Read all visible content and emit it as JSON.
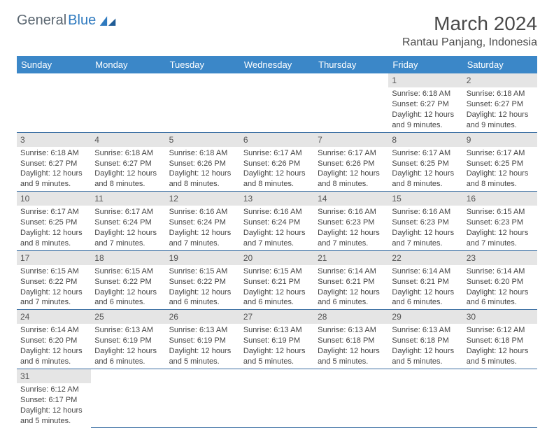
{
  "logo": {
    "text1": "General",
    "text2": "Blue"
  },
  "title": "March 2024",
  "location": "Rantau Panjang, Indonesia",
  "colors": {
    "header_bg": "#3b87c8",
    "header_text": "#ffffff",
    "daynum_bg": "#e5e5e5",
    "cell_border": "#3b6fa3",
    "body_text": "#444444"
  },
  "weekdays": [
    "Sunday",
    "Monday",
    "Tuesday",
    "Wednesday",
    "Thursday",
    "Friday",
    "Saturday"
  ],
  "weeks": [
    [
      null,
      null,
      null,
      null,
      null,
      {
        "n": "1",
        "sr": "Sunrise: 6:18 AM",
        "ss": "Sunset: 6:27 PM",
        "dl": "Daylight: 12 hours and 9 minutes."
      },
      {
        "n": "2",
        "sr": "Sunrise: 6:18 AM",
        "ss": "Sunset: 6:27 PM",
        "dl": "Daylight: 12 hours and 9 minutes."
      }
    ],
    [
      {
        "n": "3",
        "sr": "Sunrise: 6:18 AM",
        "ss": "Sunset: 6:27 PM",
        "dl": "Daylight: 12 hours and 9 minutes."
      },
      {
        "n": "4",
        "sr": "Sunrise: 6:18 AM",
        "ss": "Sunset: 6:27 PM",
        "dl": "Daylight: 12 hours and 8 minutes."
      },
      {
        "n": "5",
        "sr": "Sunrise: 6:18 AM",
        "ss": "Sunset: 6:26 PM",
        "dl": "Daylight: 12 hours and 8 minutes."
      },
      {
        "n": "6",
        "sr": "Sunrise: 6:17 AM",
        "ss": "Sunset: 6:26 PM",
        "dl": "Daylight: 12 hours and 8 minutes."
      },
      {
        "n": "7",
        "sr": "Sunrise: 6:17 AM",
        "ss": "Sunset: 6:26 PM",
        "dl": "Daylight: 12 hours and 8 minutes."
      },
      {
        "n": "8",
        "sr": "Sunrise: 6:17 AM",
        "ss": "Sunset: 6:25 PM",
        "dl": "Daylight: 12 hours and 8 minutes."
      },
      {
        "n": "9",
        "sr": "Sunrise: 6:17 AM",
        "ss": "Sunset: 6:25 PM",
        "dl": "Daylight: 12 hours and 8 minutes."
      }
    ],
    [
      {
        "n": "10",
        "sr": "Sunrise: 6:17 AM",
        "ss": "Sunset: 6:25 PM",
        "dl": "Daylight: 12 hours and 8 minutes."
      },
      {
        "n": "11",
        "sr": "Sunrise: 6:17 AM",
        "ss": "Sunset: 6:24 PM",
        "dl": "Daylight: 12 hours and 7 minutes."
      },
      {
        "n": "12",
        "sr": "Sunrise: 6:16 AM",
        "ss": "Sunset: 6:24 PM",
        "dl": "Daylight: 12 hours and 7 minutes."
      },
      {
        "n": "13",
        "sr": "Sunrise: 6:16 AM",
        "ss": "Sunset: 6:24 PM",
        "dl": "Daylight: 12 hours and 7 minutes."
      },
      {
        "n": "14",
        "sr": "Sunrise: 6:16 AM",
        "ss": "Sunset: 6:23 PM",
        "dl": "Daylight: 12 hours and 7 minutes."
      },
      {
        "n": "15",
        "sr": "Sunrise: 6:16 AM",
        "ss": "Sunset: 6:23 PM",
        "dl": "Daylight: 12 hours and 7 minutes."
      },
      {
        "n": "16",
        "sr": "Sunrise: 6:15 AM",
        "ss": "Sunset: 6:23 PM",
        "dl": "Daylight: 12 hours and 7 minutes."
      }
    ],
    [
      {
        "n": "17",
        "sr": "Sunrise: 6:15 AM",
        "ss": "Sunset: 6:22 PM",
        "dl": "Daylight: 12 hours and 7 minutes."
      },
      {
        "n": "18",
        "sr": "Sunrise: 6:15 AM",
        "ss": "Sunset: 6:22 PM",
        "dl": "Daylight: 12 hours and 6 minutes."
      },
      {
        "n": "19",
        "sr": "Sunrise: 6:15 AM",
        "ss": "Sunset: 6:22 PM",
        "dl": "Daylight: 12 hours and 6 minutes."
      },
      {
        "n": "20",
        "sr": "Sunrise: 6:15 AM",
        "ss": "Sunset: 6:21 PM",
        "dl": "Daylight: 12 hours and 6 minutes."
      },
      {
        "n": "21",
        "sr": "Sunrise: 6:14 AM",
        "ss": "Sunset: 6:21 PM",
        "dl": "Daylight: 12 hours and 6 minutes."
      },
      {
        "n": "22",
        "sr": "Sunrise: 6:14 AM",
        "ss": "Sunset: 6:21 PM",
        "dl": "Daylight: 12 hours and 6 minutes."
      },
      {
        "n": "23",
        "sr": "Sunrise: 6:14 AM",
        "ss": "Sunset: 6:20 PM",
        "dl": "Daylight: 12 hours and 6 minutes."
      }
    ],
    [
      {
        "n": "24",
        "sr": "Sunrise: 6:14 AM",
        "ss": "Sunset: 6:20 PM",
        "dl": "Daylight: 12 hours and 6 minutes."
      },
      {
        "n": "25",
        "sr": "Sunrise: 6:13 AM",
        "ss": "Sunset: 6:19 PM",
        "dl": "Daylight: 12 hours and 6 minutes."
      },
      {
        "n": "26",
        "sr": "Sunrise: 6:13 AM",
        "ss": "Sunset: 6:19 PM",
        "dl": "Daylight: 12 hours and 5 minutes."
      },
      {
        "n": "27",
        "sr": "Sunrise: 6:13 AM",
        "ss": "Sunset: 6:19 PM",
        "dl": "Daylight: 12 hours and 5 minutes."
      },
      {
        "n": "28",
        "sr": "Sunrise: 6:13 AM",
        "ss": "Sunset: 6:18 PM",
        "dl": "Daylight: 12 hours and 5 minutes."
      },
      {
        "n": "29",
        "sr": "Sunrise: 6:13 AM",
        "ss": "Sunset: 6:18 PM",
        "dl": "Daylight: 12 hours and 5 minutes."
      },
      {
        "n": "30",
        "sr": "Sunrise: 6:12 AM",
        "ss": "Sunset: 6:18 PM",
        "dl": "Daylight: 12 hours and 5 minutes."
      }
    ],
    [
      {
        "n": "31",
        "sr": "Sunrise: 6:12 AM",
        "ss": "Sunset: 6:17 PM",
        "dl": "Daylight: 12 hours and 5 minutes."
      },
      null,
      null,
      null,
      null,
      null,
      null
    ]
  ]
}
